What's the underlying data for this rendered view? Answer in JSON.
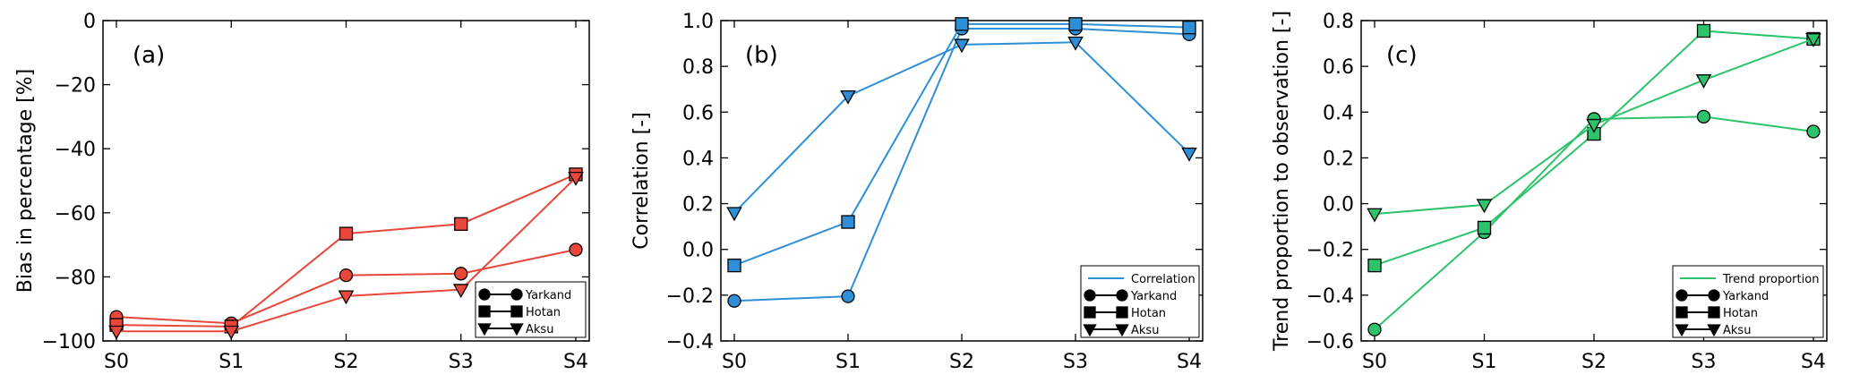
{
  "chart_data": [
    {
      "type": "line",
      "panel_label": "(a)",
      "title": "",
      "xlabel": "",
      "ylabel": "Bias in percentage [%]",
      "categories": [
        "S0",
        "S1",
        "S2",
        "S3",
        "S4"
      ],
      "ylim": [
        -100,
        0
      ],
      "yticks": [
        0,
        -20,
        -40,
        -60,
        -80,
        -100
      ],
      "ytick_labels": [
        "0",
        "−20",
        "−40",
        "−60",
        "−80",
        "−100"
      ],
      "grid": false,
      "legend": {
        "position": "bottom-right",
        "entries": [
          "Yarkand",
          "Hotan",
          "Aksu"
        ],
        "header": ""
      },
      "color": "#e8473a",
      "series": [
        {
          "name": "Yarkand",
          "marker": "circle",
          "values": [
            -92.5,
            -94.5,
            -79.5,
            -79,
            -71.5
          ]
        },
        {
          "name": "Hotan",
          "marker": "square",
          "values": [
            -95,
            -95.5,
            -66.5,
            -63.5,
            -48
          ]
        },
        {
          "name": "Aksu",
          "marker": "triangle-down",
          "values": [
            -97,
            -97,
            -86,
            -84,
            -49
          ]
        }
      ]
    },
    {
      "type": "line",
      "panel_label": "(b)",
      "title": "",
      "xlabel": "",
      "ylabel": "Correlation [-]",
      "categories": [
        "S0",
        "S1",
        "S2",
        "S3",
        "S4"
      ],
      "ylim": [
        -0.4,
        1.0
      ],
      "yticks": [
        1.0,
        0.8,
        0.6,
        0.4,
        0.2,
        0.0,
        -0.2,
        -0.4
      ],
      "ytick_labels": [
        "1.0",
        "0.8",
        "0.6",
        "0.4",
        "0.2",
        "0.0",
        "−0.2",
        "−0.4"
      ],
      "grid": false,
      "legend": {
        "position": "bottom-right",
        "entries": [
          "Yarkand",
          "Hotan",
          "Aksu"
        ],
        "header": "Correlation"
      },
      "color": "#2e8fd6",
      "series": [
        {
          "name": "Yarkand",
          "marker": "circle",
          "values": [
            -0.225,
            -0.205,
            0.965,
            0.965,
            0.94
          ]
        },
        {
          "name": "Hotan",
          "marker": "square",
          "values": [
            -0.07,
            0.12,
            0.985,
            0.985,
            0.97
          ]
        },
        {
          "name": "Aksu",
          "marker": "triangle-down",
          "values": [
            0.16,
            0.67,
            0.895,
            0.905,
            0.42
          ]
        }
      ]
    },
    {
      "type": "line",
      "panel_label": "(c)",
      "title": "",
      "xlabel": "",
      "ylabel": "Trend proportion to observation [-]",
      "categories": [
        "S0",
        "S1",
        "S2",
        "S3",
        "S4"
      ],
      "ylim": [
        -0.6,
        0.8
      ],
      "yticks": [
        0.8,
        0.6,
        0.4,
        0.2,
        0.0,
        -0.2,
        -0.4,
        -0.6
      ],
      "ytick_labels": [
        "0.8",
        "0.6",
        "0.4",
        "0.2",
        "0.0",
        "−0.2",
        "−0.4",
        "−0.6"
      ],
      "grid": false,
      "legend": {
        "position": "bottom-right",
        "entries": [
          "Yarkand",
          "Hotan",
          "Aksu"
        ],
        "header": "Trend proportion"
      },
      "color": "#2cc36b",
      "series": [
        {
          "name": "Yarkand",
          "marker": "circle",
          "values": [
            -0.55,
            -0.125,
            0.37,
            0.38,
            0.315
          ]
        },
        {
          "name": "Hotan",
          "marker": "square",
          "values": [
            -0.27,
            -0.105,
            0.305,
            0.755,
            0.72
          ]
        },
        {
          "name": "Aksu",
          "marker": "triangle-down",
          "values": [
            -0.045,
            -0.005,
            0.345,
            0.54,
            0.72
          ]
        }
      ]
    }
  ]
}
